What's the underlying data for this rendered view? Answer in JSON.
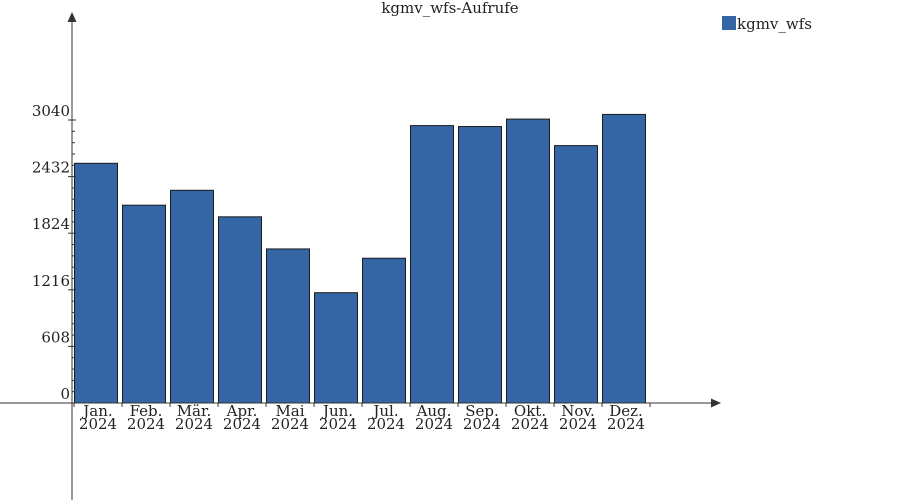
{
  "chart_data": {
    "type": "bar",
    "title": "kgmv_wfs-Aufrufe",
    "xlabel": "",
    "ylabel": "",
    "categories": [
      [
        "Jan.",
        "2024"
      ],
      [
        "Feb.",
        "2024"
      ],
      [
        "Mär.",
        "2024"
      ],
      [
        "Apr.",
        "2024"
      ],
      [
        "Mai",
        "2024"
      ],
      [
        "Jun.",
        "2024"
      ],
      [
        "Jul.",
        "2024"
      ],
      [
        "Aug.",
        "2024"
      ],
      [
        "Sep.",
        "2024"
      ],
      [
        "Okt.",
        "2024"
      ],
      [
        "Nov.",
        "2024"
      ],
      [
        "Dez.",
        "2024"
      ]
    ],
    "series": [
      {
        "name": "kgmv_wfs",
        "color": "#3465a4",
        "values": [
          2575,
          2125,
          2285,
          2000,
          1655,
          1185,
          1555,
          2980,
          2970,
          3050,
          2765,
          3100
        ]
      }
    ],
    "yticks": [
      0,
      608,
      1216,
      1824,
      2432,
      3040
    ],
    "ylim": [
      0,
      3040
    ],
    "grid": false,
    "legend": "top-right"
  }
}
